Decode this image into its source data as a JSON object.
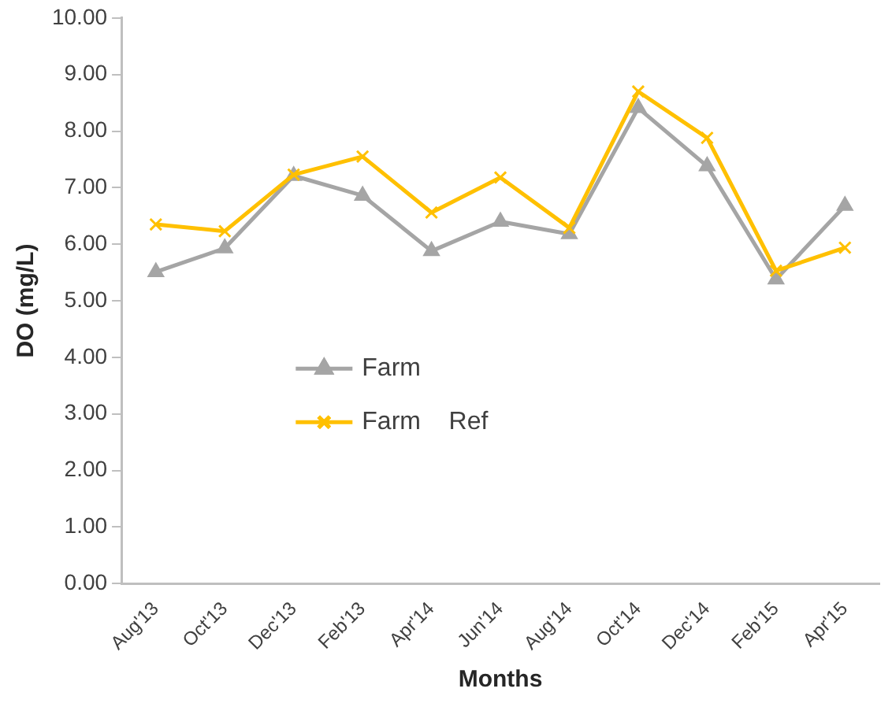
{
  "chart_data": {
    "type": "line",
    "xlabel": "Months",
    "ylabel": "DO (mg/L)",
    "categories": [
      "Aug'13",
      "Oct'13",
      "Dec'13",
      "Feb'13",
      "Apr'14",
      "Jun'14",
      "Aug'14",
      "Oct'14",
      "Dec'14",
      "Feb'15",
      "Apr'15"
    ],
    "series": [
      {
        "name": "Farm",
        "color": "#a5a5a5",
        "marker": "triangle",
        "values": [
          5.51,
          5.93,
          7.21,
          6.86,
          5.88,
          6.4,
          6.18,
          8.41,
          7.38,
          5.38,
          6.68
        ]
      },
      {
        "name": "Farm    Ref",
        "color": "#ffc000",
        "marker": "cross",
        "values": [
          6.35,
          6.23,
          7.23,
          7.55,
          6.56,
          7.18,
          6.29,
          8.7,
          7.88,
          5.53,
          5.94
        ]
      }
    ],
    "ylim": [
      0,
      10
    ],
    "yticks": [
      {
        "value": 0,
        "label": "0.00"
      },
      {
        "value": 1,
        "label": "1.00"
      },
      {
        "value": 2,
        "label": "2.00"
      },
      {
        "value": 3,
        "label": "3.00"
      },
      {
        "value": 4,
        "label": "4.00"
      },
      {
        "value": 5,
        "label": "5.00"
      },
      {
        "value": 6,
        "label": "6.00"
      },
      {
        "value": 7,
        "label": "7.00"
      },
      {
        "value": 8,
        "label": "8.00"
      },
      {
        "value": 9,
        "label": "9.00"
      },
      {
        "value": 10,
        "label": "10.00"
      }
    ],
    "grid": false,
    "legend": "center left"
  }
}
